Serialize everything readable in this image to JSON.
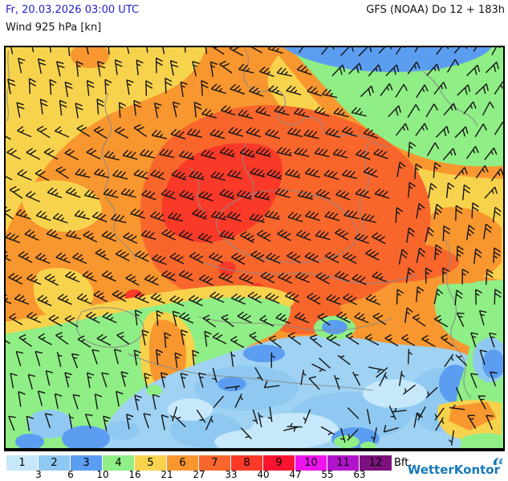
{
  "header": {
    "datetime": "Fr, 20.03.2026 03:00 UTC",
    "parameter": "Wind 925 hPa [kn]",
    "model_run": "GFS (NOAA) Do 12 + 183h"
  },
  "map": {
    "palette": {
      "bft1": "#c6e8fa",
      "bft2": "#8fc9f1",
      "bft3": "#5b9df0",
      "bft4": "#8fee85",
      "bft5": "#f7d34d",
      "bft6": "#f8962f",
      "bft7": "#f8662c",
      "bft8": "#fa3928",
      "bft9": "#fb1430",
      "bft10": "#ee14ee",
      "bft11": "#b214cd",
      "bft12": "#7c127e"
    },
    "blue_area_base": "#9fd2f3",
    "country_border_color": "#8a8a8a",
    "frame_color": "#000000",
    "wind_barb_color": "#151515"
  },
  "legend": {
    "unit_label": "Bft.",
    "cells": [
      {
        "bft": "1",
        "color": "#c6e8fa"
      },
      {
        "bft": "2",
        "color": "#8fc9f1"
      },
      {
        "bft": "3",
        "color": "#5b9df0"
      },
      {
        "bft": "4",
        "color": "#8fee85"
      },
      {
        "bft": "5",
        "color": "#f7d34d"
      },
      {
        "bft": "6",
        "color": "#f8962f"
      },
      {
        "bft": "7",
        "color": "#f8662c"
      },
      {
        "bft": "8",
        "color": "#fa3928"
      },
      {
        "bft": "9",
        "color": "#fb1430"
      },
      {
        "bft": "10",
        "color": "#ee14ee"
      },
      {
        "bft": "11",
        "color": "#b214cd"
      },
      {
        "bft": "12",
        "color": "#7c127e"
      }
    ],
    "knot_boundaries": [
      "3",
      "6",
      "10",
      "16",
      "21",
      "27",
      "33",
      "40",
      "47",
      "55",
      "63"
    ]
  },
  "branding": {
    "logo_text": "WetterKontor",
    "logo_color": "#1779b8"
  }
}
